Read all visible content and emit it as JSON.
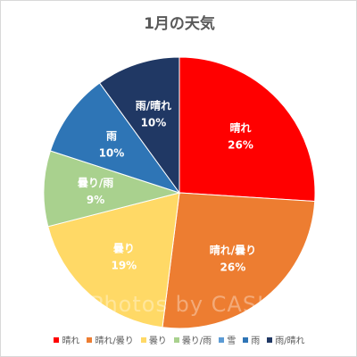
{
  "chart_data": {
    "type": "pie",
    "title": "1月の天気",
    "legend_position": "bottom",
    "slices": [
      {
        "label": "晴れ",
        "value": 26,
        "display": "26%",
        "color": "#ff0000"
      },
      {
        "label": "晴れ/曇り",
        "value": 26,
        "display": "26%",
        "color": "#ed7d31"
      },
      {
        "label": "曇り",
        "value": 19,
        "display": "19%",
        "color": "#ffd966"
      },
      {
        "label": "曇り/雨",
        "value": 9,
        "display": "9%",
        "color": "#a9d18e"
      },
      {
        "label": "雪",
        "value": 0,
        "display": "",
        "color": "#5b9bd5"
      },
      {
        "label": "雨",
        "value": 10,
        "display": "10%",
        "color": "#2e75b6"
      },
      {
        "label": "雨/晴れ",
        "value": 10,
        "display": "10%",
        "color": "#203864"
      }
    ]
  },
  "watermark": "Photos by CASIO"
}
